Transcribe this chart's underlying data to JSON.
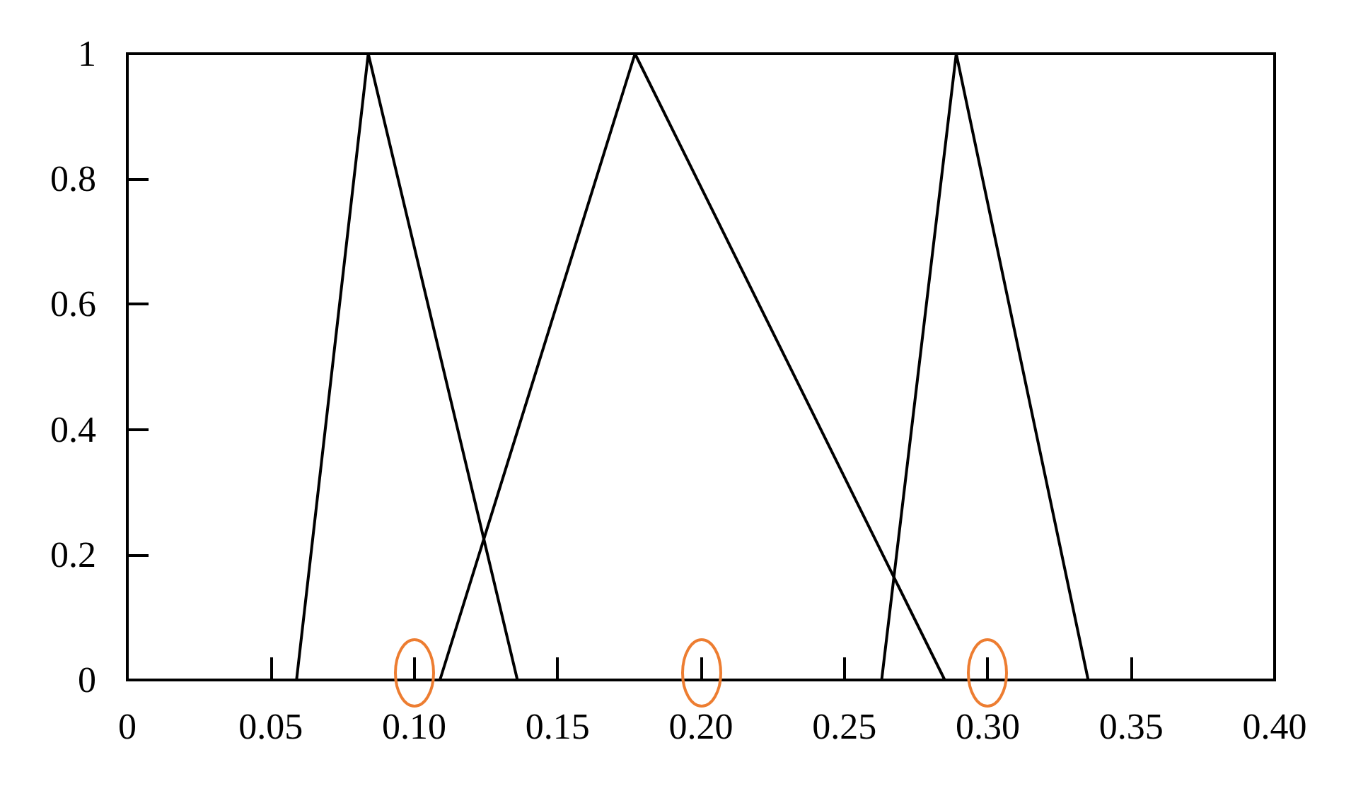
{
  "chart_data": {
    "type": "line",
    "series": [
      {
        "color": "#000000",
        "x": [
          0.059,
          0.084,
          0.136
        ],
        "values": [
          0,
          1,
          0
        ]
      },
      {
        "color": "#000000",
        "x": [
          0.109,
          0.177,
          0.285
        ],
        "values": [
          0,
          1,
          0
        ]
      },
      {
        "color": "#000000",
        "x": [
          0.263,
          0.289,
          0.335
        ],
        "values": [
          0,
          1,
          0
        ]
      }
    ],
    "xlim": [
      0,
      0.4
    ],
    "ylim": [
      0,
      1
    ],
    "xticks": [
      0,
      0.05,
      {
        "value": 0.1,
        "label": "0.10"
      },
      0.15,
      {
        "value": 0.2,
        "label": "0.20"
      },
      0.25,
      {
        "value": 0.3,
        "label": "0.30"
      },
      0.35,
      {
        "value": 0.4,
        "label": "0.40"
      }
    ],
    "yticks": [
      0,
      0.2,
      0.4,
      0.6,
      0.8,
      1
    ],
    "marker": "none",
    "line_style": "solid"
  }
}
